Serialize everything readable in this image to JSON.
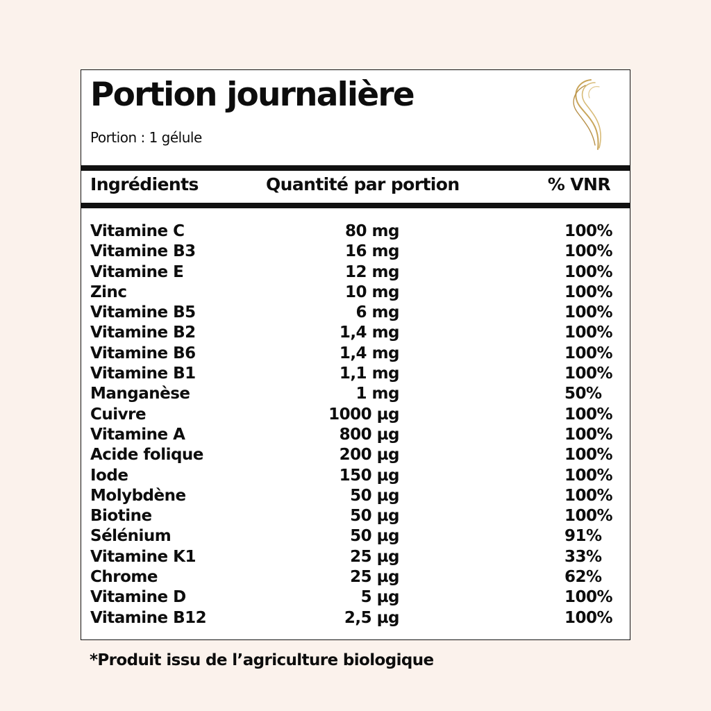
{
  "title": "Portion journalière",
  "serving": "Portion : 1 gélule",
  "logo": {
    "name": "gold-swirl-logo",
    "color": "#c9a55a"
  },
  "columns": [
    "Ingrédients",
    "Quantité par portion",
    "% VNR"
  ],
  "rows": [
    {
      "name": "Vitamine C",
      "qty": "80 mg",
      "vnr": "100%"
    },
    {
      "name": "Vitamine B3",
      "qty": "16 mg",
      "vnr": "100%"
    },
    {
      "name": "Vitamine E",
      "qty": "12 mg",
      "vnr": "100%"
    },
    {
      "name": "Zinc",
      "qty": "10 mg",
      "vnr": "100%"
    },
    {
      "name": "Vitamine B5",
      "qty": "6 mg",
      "vnr": "100%"
    },
    {
      "name": "Vitamine B2",
      "qty": "1,4 mg",
      "vnr": "100%"
    },
    {
      "name": "Vitamine B6",
      "qty": "1,4 mg",
      "vnr": "100%"
    },
    {
      "name": "Vitamine B1",
      "qty": "1,1 mg",
      "vnr": "100%"
    },
    {
      "name": "Manganèse",
      "qty": "1 mg",
      "vnr": "50%"
    },
    {
      "name": "Cuivre",
      "qty": "1000 µg",
      "vnr": "100%"
    },
    {
      "name": "Vitamine A",
      "qty": "800 µg",
      "vnr": "100%"
    },
    {
      "name": "Acide folique",
      "qty": "200 µg",
      "vnr": "100%"
    },
    {
      "name": "Iode",
      "qty": "150 µg",
      "vnr": "100%"
    },
    {
      "name": "Molybdène",
      "qty": "50 µg",
      "vnr": "100%"
    },
    {
      "name": "Biotine",
      "qty": "50 µg",
      "vnr": "100%"
    },
    {
      "name": "Sélénium",
      "qty": "50 µg",
      "vnr": "91%"
    },
    {
      "name": "Vitamine K1",
      "qty": "25 µg",
      "vnr": "33%"
    },
    {
      "name": "Chrome",
      "qty": "25 µg",
      "vnr": "62%"
    },
    {
      "name": "Vitamine D",
      "qty": "5 µg",
      "vnr": "100%"
    },
    {
      "name": "Vitamine B12",
      "qty": "2,5 µg",
      "vnr": "100%"
    }
  ],
  "footnote": "*Produit issu de l’agriculture biologique"
}
